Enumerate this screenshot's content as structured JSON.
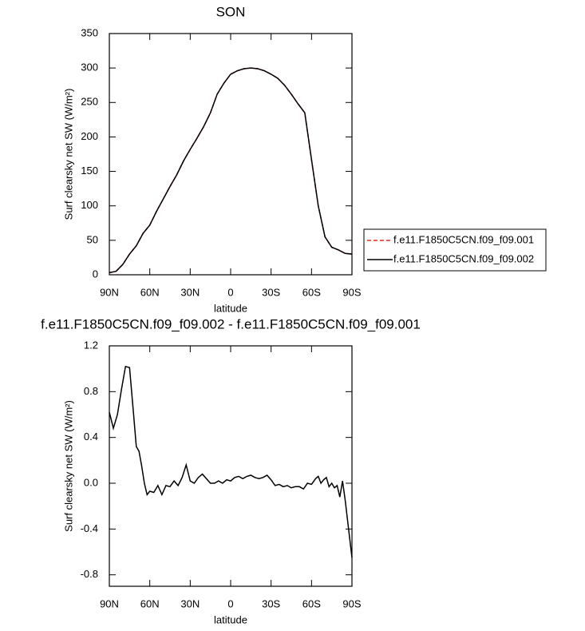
{
  "chart_data": [
    {
      "type": "line",
      "title": "SON",
      "xlabel": "latitude",
      "ylabel": "Surf clearsky net SW (W/m²)",
      "x": [
        90,
        85,
        80,
        75,
        70,
        65,
        60,
        55,
        50,
        45,
        40,
        35,
        30,
        25,
        20,
        15,
        10,
        5,
        0,
        -5,
        -10,
        -15,
        -20,
        -25,
        -30,
        -35,
        -40,
        -45,
        -50,
        -55,
        -60,
        -65,
        -70,
        -75,
        -80,
        -85,
        -90
      ],
      "series": [
        {
          "name": "f.e11.F1850C5CN.f09_f09.001",
          "color": "#e8231f",
          "linestyle": "dashed",
          "values": [
            3,
            5,
            15,
            30,
            42,
            60,
            72,
            92,
            110,
            128,
            145,
            165,
            182,
            198,
            215,
            235,
            262,
            278,
            291,
            296,
            299,
            300,
            299,
            296,
            291,
            285,
            275,
            262,
            248,
            235,
            167,
            100,
            55,
            40,
            36,
            31,
            30
          ]
        },
        {
          "name": "f.e11.F1850C5CN.f09_f09.002",
          "color": "#000000",
          "linestyle": "solid",
          "values": [
            3,
            5,
            15,
            30,
            42,
            60,
            72,
            92,
            110,
            128,
            145,
            165,
            182,
            198,
            215,
            235,
            262,
            278,
            291,
            296,
            299,
            300,
            299,
            296,
            291,
            285,
            275,
            262,
            248,
            235,
            167,
            100,
            55,
            40,
            36,
            31,
            30
          ]
        }
      ],
      "xlim": [
        90,
        -90
      ],
      "xticks": [
        {
          "value": 90,
          "label": "90N"
        },
        {
          "value": 60,
          "label": "60N"
        },
        {
          "value": 30,
          "label": "30N"
        },
        0,
        {
          "value": -30,
          "label": "30S"
        },
        {
          "value": -60,
          "label": "60S"
        },
        {
          "value": -90,
          "label": "90S"
        }
      ],
      "ylim": [
        0,
        350
      ],
      "yticks": [
        0,
        50,
        100,
        150,
        200,
        250,
        300,
        350
      ],
      "legend": "right"
    },
    {
      "type": "line",
      "title": "f.e11.F1850C5CN.f09_f09.002 - f.e11.F1850C5CN.f09_f09.001",
      "xlabel": "latitude",
      "ylabel": "Surf clearsky net SW (W/m²)",
      "x": [
        90,
        87,
        84,
        81,
        78,
        75,
        72,
        70,
        68,
        66,
        64,
        62,
        60,
        57,
        54,
        51,
        48,
        45,
        42,
        39,
        36,
        33,
        30,
        27,
        24,
        21,
        18,
        15,
        12,
        9,
        6,
        3,
        0,
        -3,
        -6,
        -9,
        -12,
        -15,
        -18,
        -21,
        -24,
        -27,
        -30,
        -33,
        -36,
        -39,
        -42,
        -45,
        -48,
        -51,
        -54,
        -57,
        -60,
        -63,
        -65,
        -67,
        -69,
        -71,
        -73,
        -75,
        -77,
        -79,
        -81,
        -83,
        -85,
        -87,
        -89,
        -90
      ],
      "series": [
        {
          "color": "#000000",
          "linestyle": "solid",
          "values": [
            0.62,
            0.48,
            0.6,
            0.82,
            1.02,
            1.01,
            0.6,
            0.32,
            0.28,
            0.15,
            0.0,
            -0.1,
            -0.07,
            -0.08,
            -0.02,
            -0.1,
            -0.02,
            -0.03,
            0.02,
            -0.02,
            0.05,
            0.16,
            0.02,
            0.0,
            0.05,
            0.08,
            0.04,
            0.0,
            0.0,
            0.02,
            0.0,
            0.03,
            0.02,
            0.05,
            0.06,
            0.04,
            0.06,
            0.07,
            0.05,
            0.04,
            0.05,
            0.07,
            0.03,
            -0.02,
            -0.01,
            -0.03,
            -0.02,
            -0.04,
            -0.03,
            -0.03,
            -0.05,
            0.0,
            -0.01,
            0.04,
            0.06,
            0.0,
            0.03,
            0.05,
            -0.03,
            0.0,
            -0.04,
            -0.02,
            -0.12,
            0.02,
            -0.15,
            -0.35,
            -0.55,
            -0.65
          ]
        }
      ],
      "xlim": [
        90,
        -90
      ],
      "xticks": [
        {
          "value": 90,
          "label": "90N"
        },
        {
          "value": 60,
          "label": "60N"
        },
        {
          "value": 30,
          "label": "30N"
        },
        0,
        {
          "value": -30,
          "label": "30S"
        },
        {
          "value": -60,
          "label": "60S"
        },
        {
          "value": -90,
          "label": "90S"
        }
      ],
      "ylim": [
        -0.9,
        1.2
      ],
      "yticks": [
        -0.8,
        -0.4,
        {
          "value": 0,
          "label": "0.0"
        },
        0.4,
        0.8,
        1.2
      ]
    }
  ]
}
